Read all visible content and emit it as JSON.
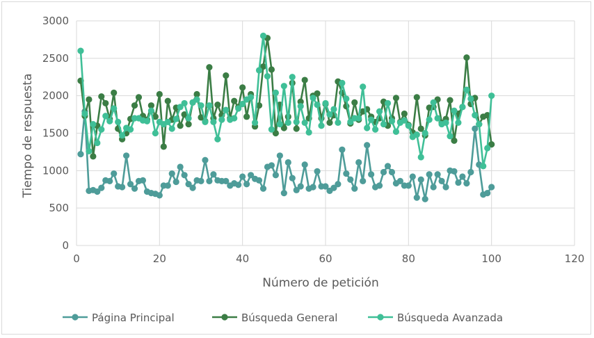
{
  "chart_data": {
    "type": "line",
    "xlabel": "Número de petición",
    "ylabel": "Tiempo de respuesta",
    "xlim": [
      0,
      120
    ],
    "ylim": [
      0,
      3000
    ],
    "xticks": [
      0,
      20,
      40,
      60,
      80,
      100,
      120
    ],
    "yticks": [
      0,
      500,
      1000,
      1500,
      2000,
      2500,
      3000
    ],
    "grid": true,
    "legend_position": "bottom",
    "series": [
      {
        "name": "Página Principal",
        "color": "#4e9c99",
        "values": [
          1220,
          1790,
          730,
          740,
          720,
          770,
          870,
          860,
          960,
          790,
          780,
          1200,
          820,
          760,
          860,
          870,
          720,
          700,
          690,
          670,
          800,
          800,
          960,
          850,
          1050,
          940,
          820,
          770,
          870,
          860,
          1140,
          860,
          950,
          870,
          860,
          860,
          800,
          830,
          810,
          920,
          820,
          940,
          890,
          870,
          760,
          1050,
          1070,
          940,
          1200,
          700,
          1110,
          900,
          740,
          790,
          1080,
          760,
          780,
          990,
          790,
          790,
          730,
          770,
          820,
          1280,
          960,
          880,
          760,
          1110,
          860,
          1340,
          950,
          780,
          800,
          980,
          1060,
          980,
          830,
          860,
          800,
          800,
          920,
          640,
          880,
          620,
          950,
          780,
          950,
          860,
          780,
          1000,
          990,
          840,
          920,
          830,
          980,
          1560,
          1080,
          680,
          700,
          780
        ]
      },
      {
        "name": "Búsqueda General",
        "color": "#3b7d45",
        "values": [
          2200,
          1730,
          1950,
          1190,
          1600,
          1990,
          1900,
          1690,
          2040,
          1560,
          1420,
          1500,
          1690,
          1870,
          1980,
          1730,
          1680,
          1870,
          1720,
          2020,
          1320,
          1930,
          1680,
          1840,
          1600,
          1750,
          1620,
          1910,
          2020,
          1710,
          1660,
          2380,
          1700,
          1880,
          1740,
          2270,
          1700,
          1930,
          1850,
          2110,
          1720,
          2020,
          1590,
          1870,
          2390,
          2770,
          2350,
          1500,
          1880,
          1570,
          1720,
          2170,
          1560,
          1920,
          2210,
          1700,
          2000,
          2030,
          1700,
          1890,
          1640,
          1740,
          2190,
          2040,
          1860,
          1630,
          1910,
          1680,
          1790,
          1820,
          1720,
          1650,
          1700,
          1920,
          1600,
          1700,
          1970,
          1650,
          1760,
          1610,
          1510,
          1980,
          1560,
          1470,
          1840,
          1850,
          1950,
          1640,
          1690,
          1940,
          1400,
          1760,
          1850,
          2510,
          1890,
          1970,
          1620,
          1720,
          1740,
          1350
        ]
      },
      {
        "name": "Búsqueda  Avanzada",
        "color": "#3fbf97",
        "values": [
          2600,
          1760,
          1260,
          1620,
          1370,
          1550,
          1730,
          1660,
          1830,
          1650,
          1470,
          1570,
          1550,
          1700,
          1700,
          1670,
          1660,
          1800,
          1500,
          1650,
          1620,
          1650,
          1560,
          1690,
          1850,
          1900,
          1700,
          1910,
          1950,
          1870,
          1650,
          1870,
          1650,
          1420,
          1680,
          1810,
          1680,
          1700,
          1830,
          1890,
          1950,
          1980,
          1640,
          2340,
          2800,
          2260,
          1550,
          2040,
          1620,
          2130,
          1640,
          2250,
          1650,
          1860,
          1640,
          1510,
          1970,
          1880,
          1600,
          1900,
          1750,
          1820,
          1640,
          2170,
          1960,
          1650,
          1700,
          1700,
          2120,
          1570,
          1680,
          1550,
          1790,
          1620,
          1900,
          1660,
          1520,
          1640,
          1670,
          1600,
          1450,
          1480,
          1180,
          1500,
          1680,
          1910,
          1700,
          1620,
          1640,
          1460,
          1800,
          1640,
          1850,
          2080,
          1960,
          1740,
          1620,
          1060,
          1300,
          2000
        ]
      }
    ]
  }
}
